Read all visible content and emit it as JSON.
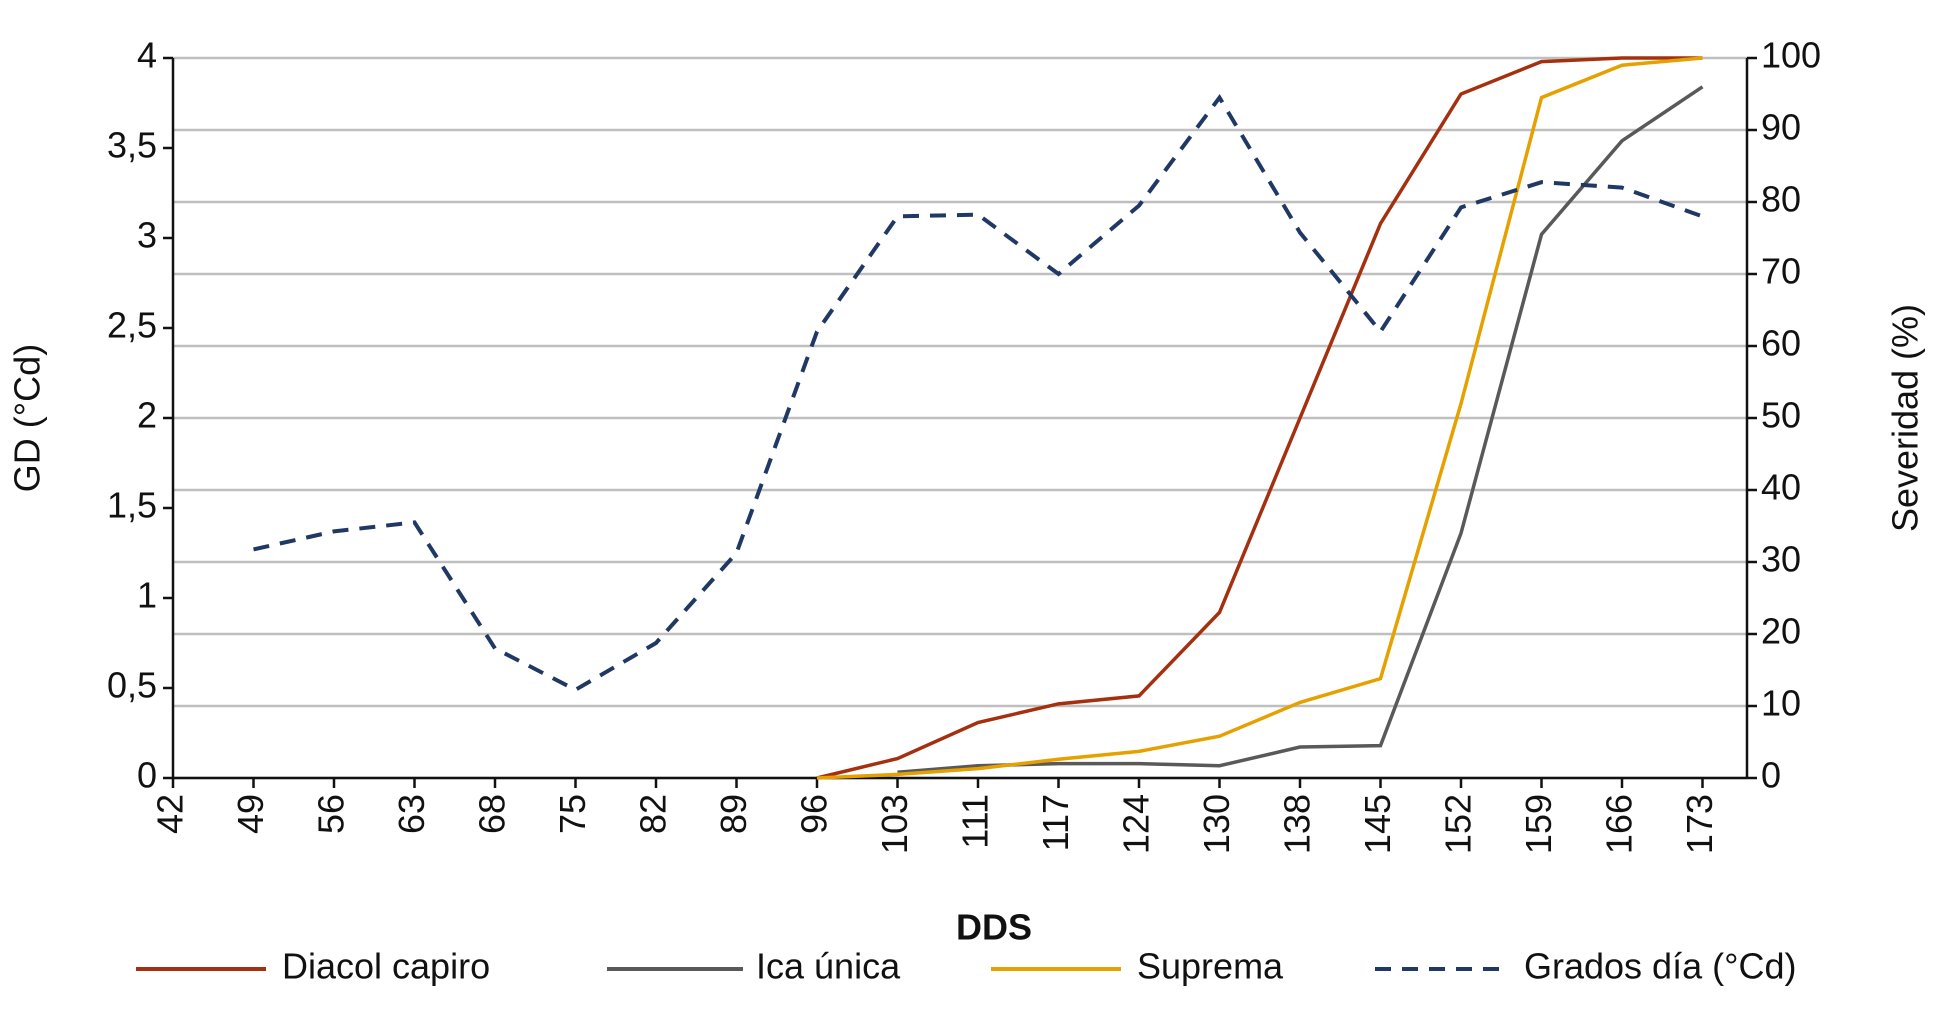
{
  "chart_data": {
    "type": "line",
    "x_label": "DDS",
    "y_label": "GD (°Cd)",
    "y2_label": "Severidad (%)",
    "categories": [
      42,
      49,
      56,
      63,
      68,
      75,
      82,
      89,
      96,
      103,
      111,
      117,
      124,
      130,
      138,
      145,
      152,
      159,
      166,
      173
    ],
    "ylim": [
      0,
      4
    ],
    "yticks": [
      0,
      {
        "value": 0.5,
        "label": "0,5"
      },
      1,
      {
        "value": 1.5,
        "label": "1,5"
      },
      2,
      {
        "value": 2.5,
        "label": "2,5"
      },
      3,
      {
        "value": 3.5,
        "label": "3,5"
      },
      4
    ],
    "y2lim": [
      0,
      100
    ],
    "y2ticks": [
      0,
      10,
      20,
      30,
      40,
      50,
      60,
      70,
      80,
      90,
      100
    ],
    "grid": true,
    "legend": "bottom",
    "series": [
      {
        "name": "Diacol capiro",
        "color": "#a5300f",
        "axis": "y2",
        "line_style": "solid",
        "values": [
          null,
          null,
          null,
          null,
          null,
          null,
          null,
          null,
          0,
          2.7,
          7.7,
          10.3,
          11.4,
          23,
          50,
          77,
          95,
          99.5,
          100,
          100
        ]
      },
      {
        "name": "Ica única",
        "color": "#595959",
        "axis": "y2",
        "line_style": "solid",
        "values": [
          null,
          null,
          null,
          null,
          null,
          null,
          null,
          null,
          null,
          0.8,
          1.7,
          2,
          2,
          1.7,
          4.3,
          4.5,
          34,
          75.5,
          88.5,
          96
        ]
      },
      {
        "name": "Suprema",
        "color": "#e6a100",
        "axis": "y2",
        "line_style": "solid",
        "values": [
          null,
          null,
          null,
          null,
          null,
          null,
          null,
          null,
          0,
          0.5,
          1.3,
          2.6,
          3.7,
          5.8,
          10.5,
          13.8,
          52,
          94.5,
          99,
          100
        ]
      },
      {
        "name": "Grados día (°Cd)",
        "color": "#1f3864",
        "axis": "y",
        "line_style": "dashed",
        "values": [
          null,
          1.27,
          1.37,
          1.42,
          0.72,
          0.49,
          0.75,
          1.25,
          2.48,
          3.12,
          3.13,
          2.8,
          3.18,
          3.78,
          3.03,
          2.48,
          3.17,
          3.31,
          3.28,
          3.12
        ]
      }
    ]
  }
}
